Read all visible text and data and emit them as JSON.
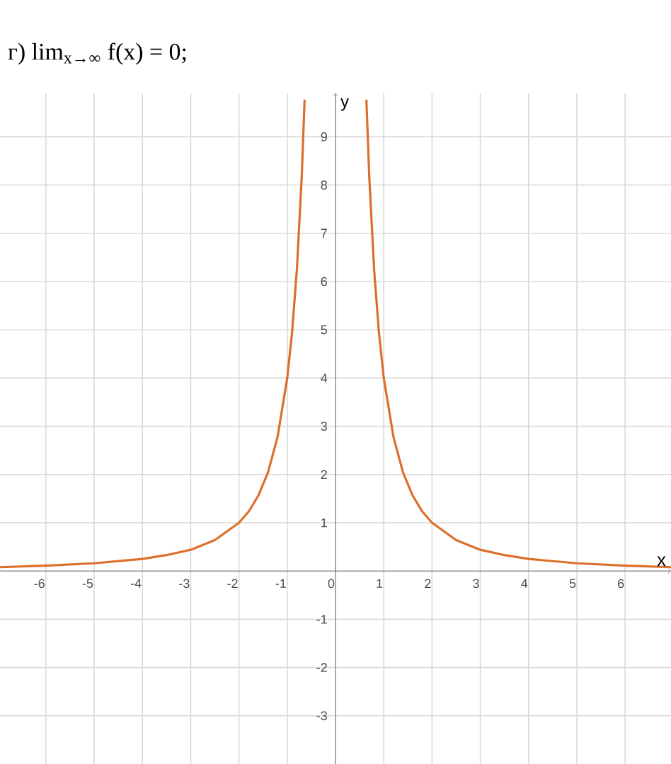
{
  "chart_data": {
    "type": "line",
    "title": "г) lim$_{x→∞}$ f(x) = 0;",
    "xlabel": "x",
    "ylabel": "y",
    "series": [
      {
        "color": "#dd6f2c",
        "x": [
          -6.95,
          -6,
          -5,
          -4,
          -3.5,
          -3,
          -2.5,
          -2,
          -1.8,
          -1.6,
          -1.4,
          -1.2,
          -1,
          -0.9,
          -0.8,
          -0.7,
          -0.64
        ],
        "values": [
          0.08,
          0.11,
          0.16,
          0.25,
          0.33,
          0.44,
          0.64,
          1,
          1.23,
          1.56,
          2.04,
          2.78,
          4,
          4.94,
          6.25,
          8.16,
          9.77
        ]
      },
      {
        "color": "#dd6f2c",
        "x": [
          0.64,
          0.7,
          0.8,
          0.9,
          1,
          1.2,
          1.4,
          1.6,
          1.8,
          2,
          2.5,
          3,
          3.5,
          4,
          5,
          6,
          6.95
        ],
        "values": [
          9.77,
          8.16,
          6.25,
          4.94,
          4,
          2.78,
          2.04,
          1.56,
          1.23,
          1,
          0.64,
          0.44,
          0.33,
          0.25,
          0.16,
          0.11,
          0.08
        ]
      }
    ],
    "xlim": [
      -6.95,
      6.95
    ],
    "ylim": [
      -4,
      9.9
    ],
    "xticks": [
      -6,
      -5,
      -4,
      -3,
      -2,
      -1,
      0,
      1,
      2,
      3,
      4,
      5,
      6
    ],
    "yticks": [
      -3,
      -2,
      -1,
      {
        "value": 0,
        "label": null
      },
      1,
      2,
      3,
      4,
      5,
      6,
      7,
      8,
      9
    ],
    "grid": true,
    "marker": "none",
    "line_style": "solid"
  }
}
